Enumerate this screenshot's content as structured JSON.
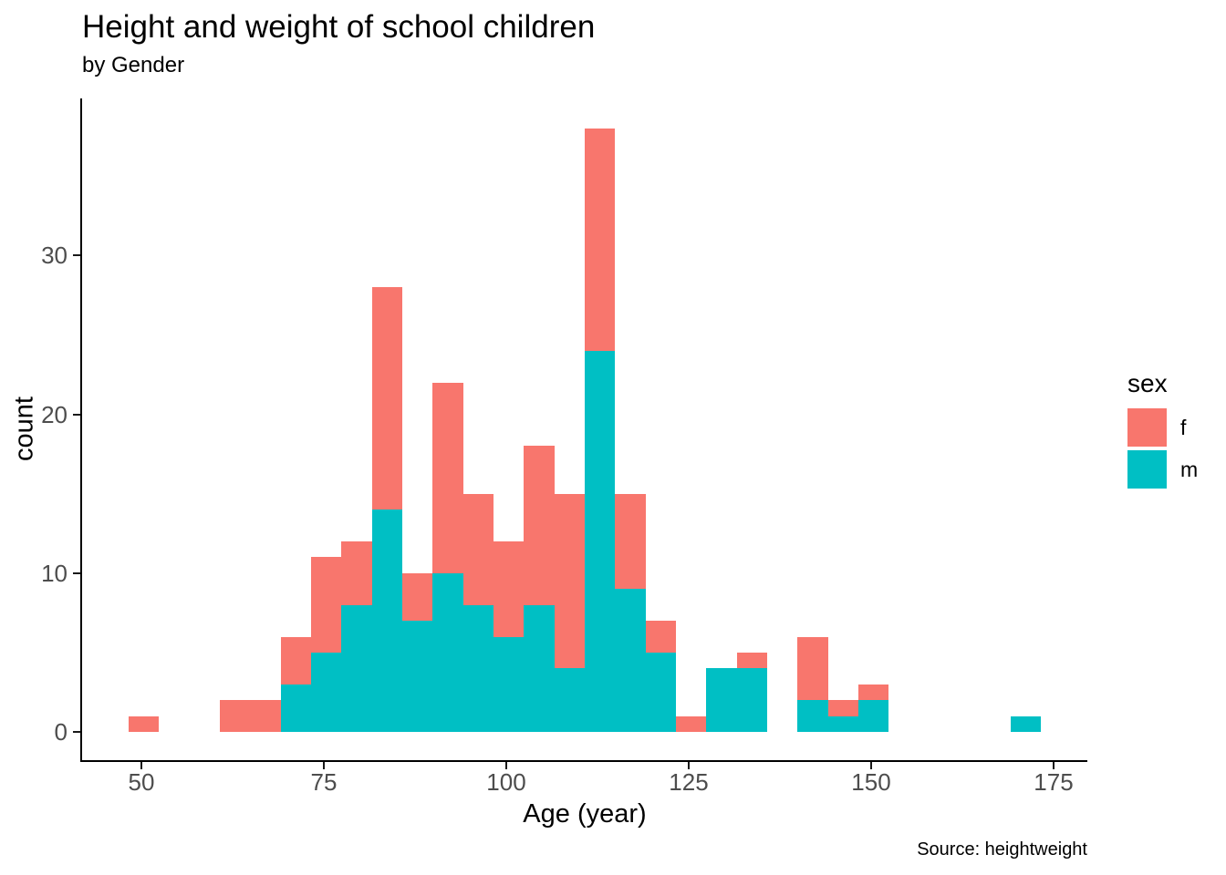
{
  "header": {
    "title": "Height and weight of school children",
    "subtitle": "by Gender"
  },
  "caption": "Source: heightweight",
  "colors": {
    "female_fill": "#F8766D",
    "male_fill": "#00BFC4",
    "axis_line": "#000000",
    "tick_text": "#4d4d4d",
    "text": "#000000",
    "background": "#ffffff"
  },
  "chart_data": {
    "type": "bar",
    "subtype": "stacked-histogram",
    "title": "Height and weight of school children",
    "subtitle": "by Gender",
    "caption": "Source: heightweight",
    "xlabel": "Age (year)",
    "ylabel": "count",
    "x_ticks": [
      50,
      75,
      100,
      125,
      150,
      175
    ],
    "y_ticks": [
      0,
      10,
      20,
      30
    ],
    "xlim": [
      41.9,
      179.7
    ],
    "ylim": [
      -1.9,
      39.8
    ],
    "grid": false,
    "bin_width_years": 4.17,
    "legend": {
      "title": "sex",
      "position": "right",
      "entries": [
        {
          "label": "f",
          "color": "#F8766D"
        },
        {
          "label": "m",
          "color": "#00BFC4"
        }
      ]
    },
    "stack_order_bottom_to_top": [
      "m",
      "f"
    ],
    "bins": [
      {
        "age_start": 48.25,
        "age_end": 52.42,
        "f": 1,
        "m": 0
      },
      {
        "age_start": 60.75,
        "age_end": 64.92,
        "f": 2,
        "m": 0
      },
      {
        "age_start": 64.92,
        "age_end": 69.08,
        "f": 2,
        "m": 0
      },
      {
        "age_start": 69.08,
        "age_end": 73.25,
        "f": 3,
        "m": 3
      },
      {
        "age_start": 73.25,
        "age_end": 77.42,
        "f": 6,
        "m": 5
      },
      {
        "age_start": 77.42,
        "age_end": 81.58,
        "f": 4,
        "m": 8
      },
      {
        "age_start": 81.58,
        "age_end": 85.75,
        "f": 14,
        "m": 14
      },
      {
        "age_start": 85.75,
        "age_end": 89.92,
        "f": 3,
        "m": 7
      },
      {
        "age_start": 89.92,
        "age_end": 94.08,
        "f": 12,
        "m": 10
      },
      {
        "age_start": 94.08,
        "age_end": 98.25,
        "f": 7,
        "m": 8
      },
      {
        "age_start": 98.25,
        "age_end": 102.42,
        "f": 6,
        "m": 6
      },
      {
        "age_start": 102.42,
        "age_end": 106.58,
        "f": 10,
        "m": 8
      },
      {
        "age_start": 106.58,
        "age_end": 110.75,
        "f": 11,
        "m": 4
      },
      {
        "age_start": 110.75,
        "age_end": 114.92,
        "f": 14,
        "m": 24
      },
      {
        "age_start": 114.92,
        "age_end": 119.08,
        "f": 6,
        "m": 9
      },
      {
        "age_start": 119.08,
        "age_end": 123.25,
        "f": 2,
        "m": 5
      },
      {
        "age_start": 123.25,
        "age_end": 127.42,
        "f": 1,
        "m": 0
      },
      {
        "age_start": 127.42,
        "age_end": 131.58,
        "f": 0,
        "m": 4
      },
      {
        "age_start": 131.58,
        "age_end": 135.75,
        "f": 1,
        "m": 4
      },
      {
        "age_start": 139.92,
        "age_end": 144.08,
        "f": 4,
        "m": 2
      },
      {
        "age_start": 144.08,
        "age_end": 148.25,
        "f": 1,
        "m": 1
      },
      {
        "age_start": 148.25,
        "age_end": 152.42,
        "f": 1,
        "m": 2
      },
      {
        "age_start": 169.08,
        "age_end": 173.25,
        "f": 0,
        "m": 1
      }
    ]
  }
}
